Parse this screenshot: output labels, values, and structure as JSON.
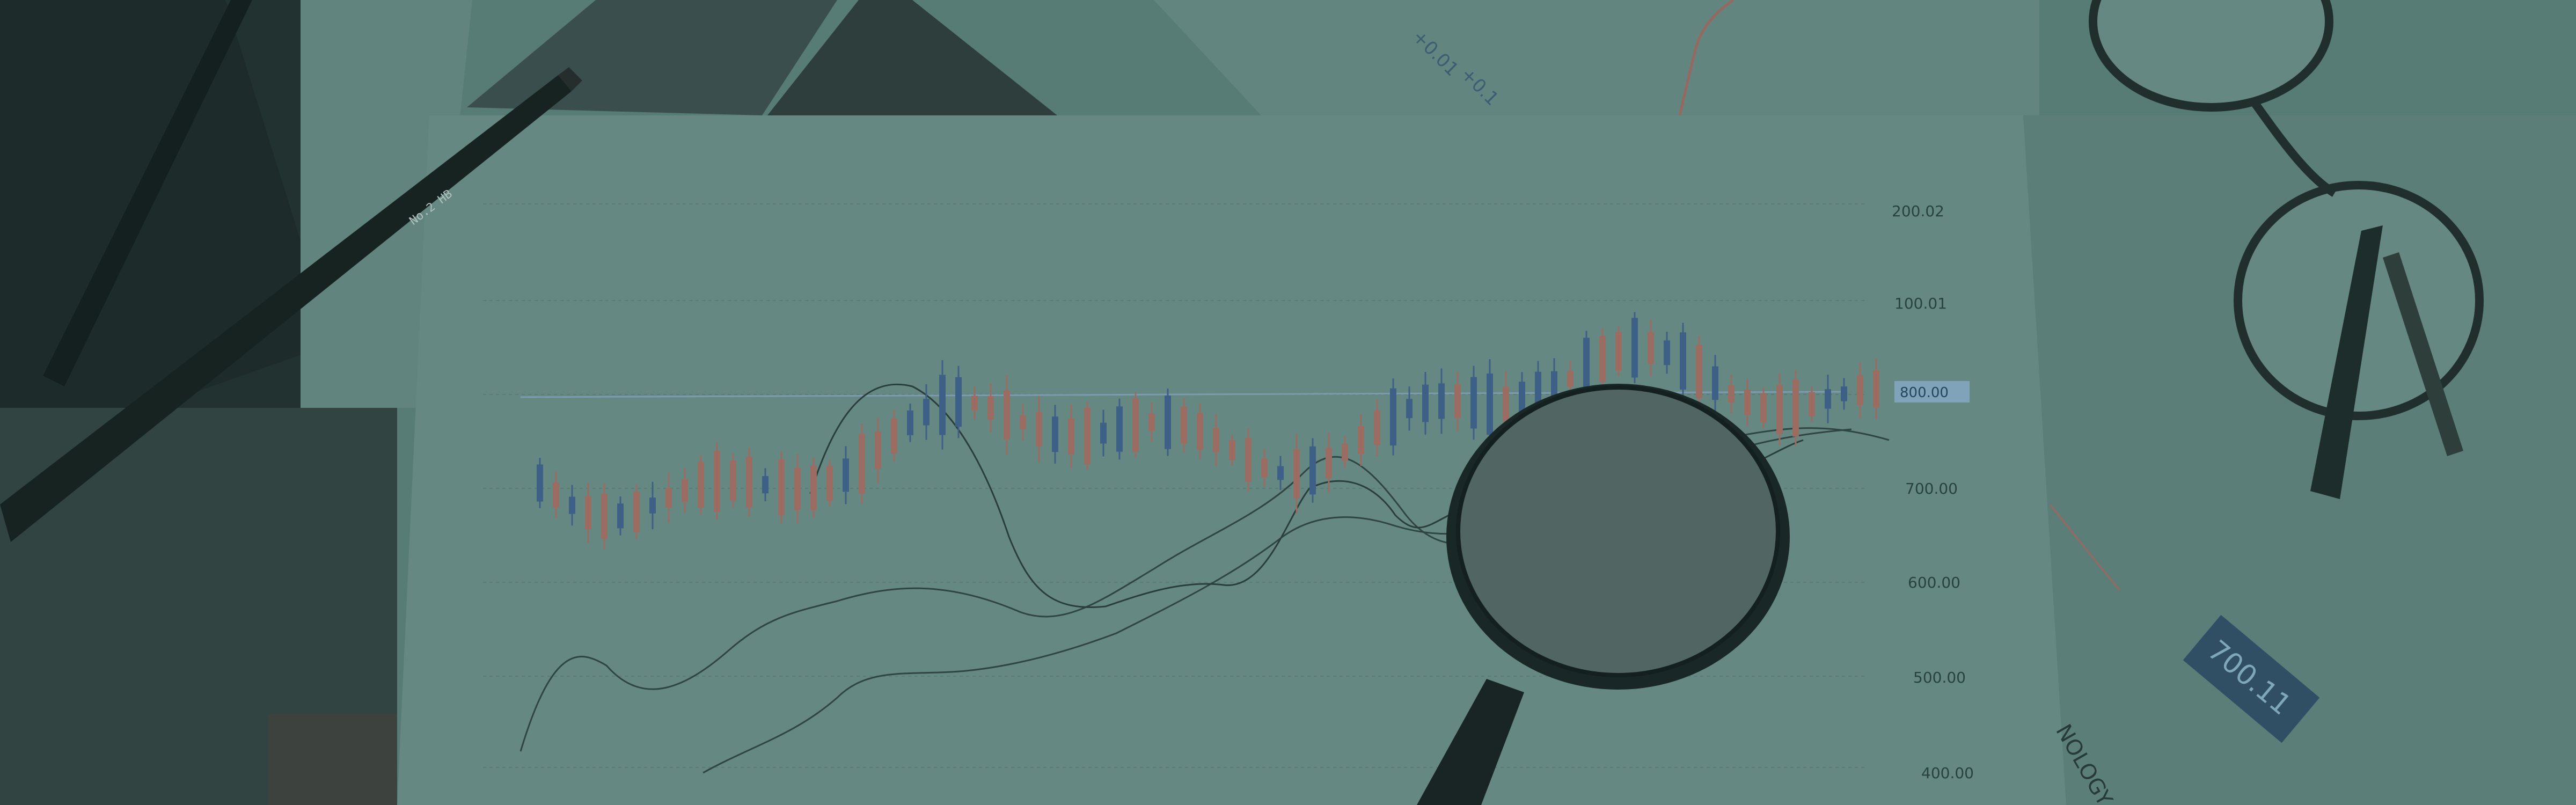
{
  "scene": {
    "description_colors": {
      "tint": "#5d7f79",
      "paper": "#6e8f89",
      "bearish": "#b06e62",
      "bullish": "#3f5f8f",
      "highlight": "#8fb0cc"
    }
  },
  "chart": {
    "y_axis_labels": [
      "200.02",
      "100.01",
      "700.00",
      "600.00",
      "500.00",
      "400.00"
    ],
    "highlight_label": "800.00"
  },
  "top_doc": {
    "labels": [
      "+0.01",
      "+0.1"
    ]
  },
  "price_tag": "700.11",
  "tech_text": "NOLOGY",
  "pencil_text": "No.2 HB"
}
